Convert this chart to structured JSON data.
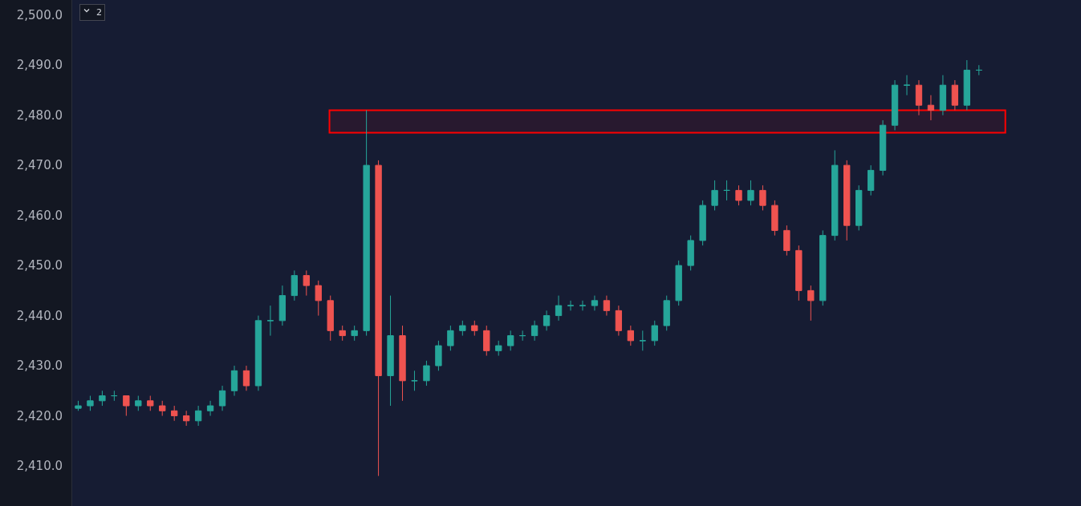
{
  "chart_data": {
    "type": "candlestick",
    "categories": [
      null,
      null,
      null,
      null,
      null,
      null,
      null,
      null,
      null,
      null,
      null,
      null,
      null,
      null,
      null,
      null,
      null,
      null,
      null,
      null,
      null,
      null,
      null,
      null,
      null,
      null,
      null,
      null,
      null,
      null,
      null,
      null,
      null,
      null,
      null,
      null,
      null,
      null,
      null,
      null,
      null,
      null,
      null,
      null,
      null,
      null,
      null,
      null,
      null,
      null,
      null,
      null,
      null,
      null,
      null,
      null,
      null,
      null,
      null,
      null,
      null,
      null,
      null,
      null,
      null,
      null,
      null,
      null,
      null,
      null,
      null,
      null,
      null,
      null,
      null,
      null,
      null,
      null,
      null,
      null,
      null,
      null,
      null,
      null
    ],
    "ohlc": [
      [
        2421.5,
        2423,
        2421,
        2422
      ],
      [
        2422,
        2424,
        2421,
        2423
      ],
      [
        2423,
        2425,
        2422,
        2424
      ],
      [
        2424,
        2425,
        2423,
        2424
      ],
      [
        2424,
        2424,
        2420,
        2422
      ],
      [
        2422,
        2424,
        2421,
        2423
      ],
      [
        2423,
        2424,
        2421,
        2422
      ],
      [
        2422,
        2423,
        2420,
        2421
      ],
      [
        2421,
        2422,
        2419,
        2420
      ],
      [
        2420,
        2421,
        2418,
        2419
      ],
      [
        2419,
        2422,
        2418,
        2421
      ],
      [
        2421,
        2423,
        2420,
        2422
      ],
      [
        2422,
        2426,
        2421,
        2425
      ],
      [
        2425,
        2430,
        2424,
        2429
      ],
      [
        2429,
        2430,
        2425,
        2426
      ],
      [
        2426,
        2440,
        2425,
        2439
      ],
      [
        2439,
        2442,
        2436,
        2439
      ],
      [
        2439,
        2446,
        2438,
        2444
      ],
      [
        2444,
        2449,
        2443,
        2448
      ],
      [
        2448,
        2449,
        2444,
        2446
      ],
      [
        2446,
        2447,
        2440,
        2443
      ],
      [
        2443,
        2444,
        2435,
        2437
      ],
      [
        2437,
        2438,
        2435,
        2436
      ],
      [
        2436,
        2438,
        2435,
        2437
      ],
      [
        2437,
        2481,
        2436,
        2470
      ],
      [
        2470,
        2471,
        2408,
        2428
      ],
      [
        2428,
        2444,
        2422,
        2436
      ],
      [
        2436,
        2438,
        2423,
        2427
      ],
      [
        2427,
        2429,
        2425,
        2427
      ],
      [
        2427,
        2431,
        2426,
        2430
      ],
      [
        2430,
        2435,
        2429,
        2434
      ],
      [
        2434,
        2438,
        2433,
        2437
      ],
      [
        2437,
        2439,
        2436,
        2438
      ],
      [
        2438,
        2439,
        2436,
        2437
      ],
      [
        2437,
        2438,
        2432,
        2433
      ],
      [
        2433,
        2435,
        2432,
        2434
      ],
      [
        2434,
        2437,
        2433,
        2436
      ],
      [
        2436,
        2437,
        2435,
        2436
      ],
      [
        2436,
        2439,
        2435,
        2438
      ],
      [
        2438,
        2441,
        2437,
        2440
      ],
      [
        2440,
        2444,
        2439,
        2442
      ],
      [
        2442,
        2443,
        2441,
        2442
      ],
      [
        2442,
        2443,
        2441,
        2442
      ],
      [
        2442,
        2444,
        2441,
        2443
      ],
      [
        2443,
        2444,
        2440,
        2441
      ],
      [
        2441,
        2442,
        2436,
        2437
      ],
      [
        2437,
        2438,
        2434,
        2435
      ],
      [
        2435,
        2437,
        2433,
        2435
      ],
      [
        2435,
        2439,
        2434,
        2438
      ],
      [
        2438,
        2444,
        2437,
        2443
      ],
      [
        2443,
        2451,
        2442,
        2450
      ],
      [
        2450,
        2456,
        2449,
        2455
      ],
      [
        2455,
        2463,
        2454,
        2462
      ],
      [
        2462,
        2467,
        2461,
        2465
      ],
      [
        2465,
        2467,
        2463,
        2465
      ],
      [
        2465,
        2466,
        2462,
        2463
      ],
      [
        2463,
        2467,
        2462,
        2465
      ],
      [
        2465,
        2466,
        2461,
        2462
      ],
      [
        2462,
        2463,
        2456,
        2457
      ],
      [
        2457,
        2458,
        2452,
        2453
      ],
      [
        2453,
        2454,
        2443,
        2445
      ],
      [
        2445,
        2446,
        2439,
        2443
      ],
      [
        2443,
        2457,
        2442,
        2456
      ],
      [
        2456,
        2473,
        2455,
        2470
      ],
      [
        2470,
        2471,
        2455,
        2458
      ],
      [
        2458,
        2466,
        2457,
        2465
      ],
      [
        2465,
        2470,
        2464,
        2469
      ],
      [
        2469,
        2479,
        2468,
        2478
      ],
      [
        2478,
        2487,
        2477,
        2486
      ],
      [
        2486,
        2488,
        2484,
        2486
      ],
      [
        2486,
        2487,
        2480,
        2482
      ],
      [
        2482,
        2484,
        2479,
        2481
      ],
      [
        2481,
        2488,
        2480,
        2486
      ],
      [
        2486,
        2487,
        2481,
        2482
      ],
      [
        2482,
        2491,
        2481,
        2489
      ],
      [
        2489,
        2490,
        2488,
        2489
      ],
      null,
      null,
      null,
      null,
      null,
      null,
      null,
      null
    ],
    "colors": [
      "#26a69a",
      "#26a69a",
      "#26a69a",
      "#26a69a",
      "#ef5350",
      "#26a69a",
      "#ef5350",
      "#ef5350",
      "#ef5350",
      "#ef5350",
      "#26a69a",
      "#26a69a",
      "#26a69a",
      "#26a69a",
      "#ef5350",
      "#26a69a",
      "#26a69a",
      "#26a69a",
      "#26a69a",
      "#ef5350",
      "#ef5350",
      "#ef5350",
      "#ef5350",
      "#26a69a",
      "#26a69a",
      "#ef5350",
      "#26a69a",
      "#ef5350",
      "#26a69a",
      "#26a69a",
      "#26a69a",
      "#26a69a",
      "#26a69a",
      "#ef5350",
      "#ef5350",
      "#26a69a",
      "#26a69a",
      "#26a69a",
      "#26a69a",
      "#26a69a",
      "#26a69a",
      "#26a69a",
      "#26a69a",
      "#26a69a",
      "#ef5350",
      "#ef5350",
      "#ef5350",
      "#26a69a",
      "#26a69a",
      "#26a69a",
      "#26a69a",
      "#26a69a",
      "#26a69a",
      "#26a69a",
      "#26a69a",
      "#ef5350",
      "#26a69a",
      "#ef5350",
      "#ef5350",
      "#ef5350",
      "#ef5350",
      "#ef5350",
      "#26a69a",
      "#26a69a",
      "#ef5350",
      "#26a69a",
      "#26a69a",
      "#26a69a",
      "#26a69a",
      "#26a69a",
      "#ef5350",
      "#ef5350",
      "#26a69a",
      "#ef5350",
      "#26a69a",
      "#26a69a",
      null,
      null,
      null,
      null,
      null,
      null,
      null,
      null
    ],
    "ylim": [
      2402,
      2503
    ],
    "yticks": [
      {
        "value": 2410,
        "label": "2,410.0"
      },
      {
        "value": 2420,
        "label": "2,420.0"
      },
      {
        "value": 2430,
        "label": "2,430.0"
      },
      {
        "value": 2440,
        "label": "2,440.0"
      },
      {
        "value": 2450,
        "label": "2,450.0"
      },
      {
        "value": 2460,
        "label": "2,460.0"
      },
      {
        "value": 2470,
        "label": "2,470.0"
      },
      {
        "value": 2480,
        "label": "2,480.0"
      },
      {
        "value": 2490,
        "label": "2,490.0"
      },
      {
        "value": 2500,
        "label": "2,500.0"
      }
    ],
    "tick_labels": "y",
    "bands": [
      {
        "axis": "y",
        "from": 2476.5,
        "to": 2481,
        "color": "#ff0000"
      }
    ],
    "annotations": [
      "2"
    ]
  }
}
